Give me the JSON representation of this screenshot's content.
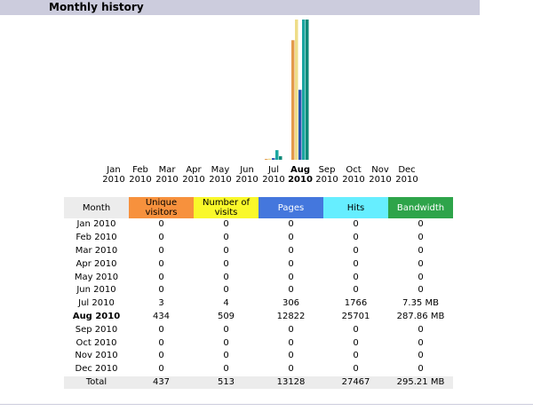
{
  "header": {
    "title": "Monthly history"
  },
  "chart": {
    "months": [
      {
        "month": "Jan",
        "year": "2010"
      },
      {
        "month": "Feb",
        "year": "2010"
      },
      {
        "month": "Mar",
        "year": "2010"
      },
      {
        "month": "Apr",
        "year": "2010"
      },
      {
        "month": "May",
        "year": "2010"
      },
      {
        "month": "Jun",
        "year": "2010"
      },
      {
        "month": "Jul",
        "year": "2010"
      },
      {
        "month": "Aug",
        "year": "2010"
      },
      {
        "month": "Sep",
        "year": "2010"
      },
      {
        "month": "Oct",
        "year": "2010"
      },
      {
        "month": "Nov",
        "year": "2010"
      },
      {
        "month": "Dec",
        "year": "2010"
      }
    ],
    "bar_colors": [
      "#e39a4a",
      "#eedd88",
      "#2a55b0",
      "#1aa6a0",
      "#0f8a78"
    ]
  },
  "current_month_index": 7,
  "table": {
    "headers": [
      "Month",
      "Unique visitors",
      "Number of visits",
      "Pages",
      "Hits",
      "Bandwidth"
    ],
    "header_colors": [
      "#ececec",
      "#f7913d",
      "#f9f82a",
      "#4477dd",
      "#66eeff",
      "#2ea44a"
    ],
    "rows": [
      [
        "Jan 2010",
        0,
        0,
        0,
        0,
        0
      ],
      [
        "Feb 2010",
        0,
        0,
        0,
        0,
        0
      ],
      [
        "Mar 2010",
        0,
        0,
        0,
        0,
        0
      ],
      [
        "Apr 2010",
        0,
        0,
        0,
        0,
        0
      ],
      [
        "May 2010",
        0,
        0,
        0,
        0,
        0
      ],
      [
        "Jun 2010",
        0,
        0,
        0,
        0,
        0
      ],
      [
        "Jul 2010",
        3,
        4,
        306,
        1766,
        {
          "value": 7.35,
          "label": "7.35 MB"
        }
      ],
      [
        "Aug 2010",
        434,
        509,
        12822,
        25701,
        {
          "value": 287.86,
          "label": "287.86 MB"
        }
      ],
      [
        "Sep 2010",
        0,
        0,
        0,
        0,
        0
      ],
      [
        "Oct 2010",
        0,
        0,
        0,
        0,
        0
      ],
      [
        "Nov 2010",
        0,
        0,
        0,
        0,
        0
      ],
      [
        "Dec 2010",
        0,
        0,
        0,
        0,
        0
      ]
    ],
    "total": [
      "Total",
      437,
      513,
      13128,
      27467,
      {
        "value": 295.21,
        "label": "295.21 MB"
      }
    ]
  }
}
